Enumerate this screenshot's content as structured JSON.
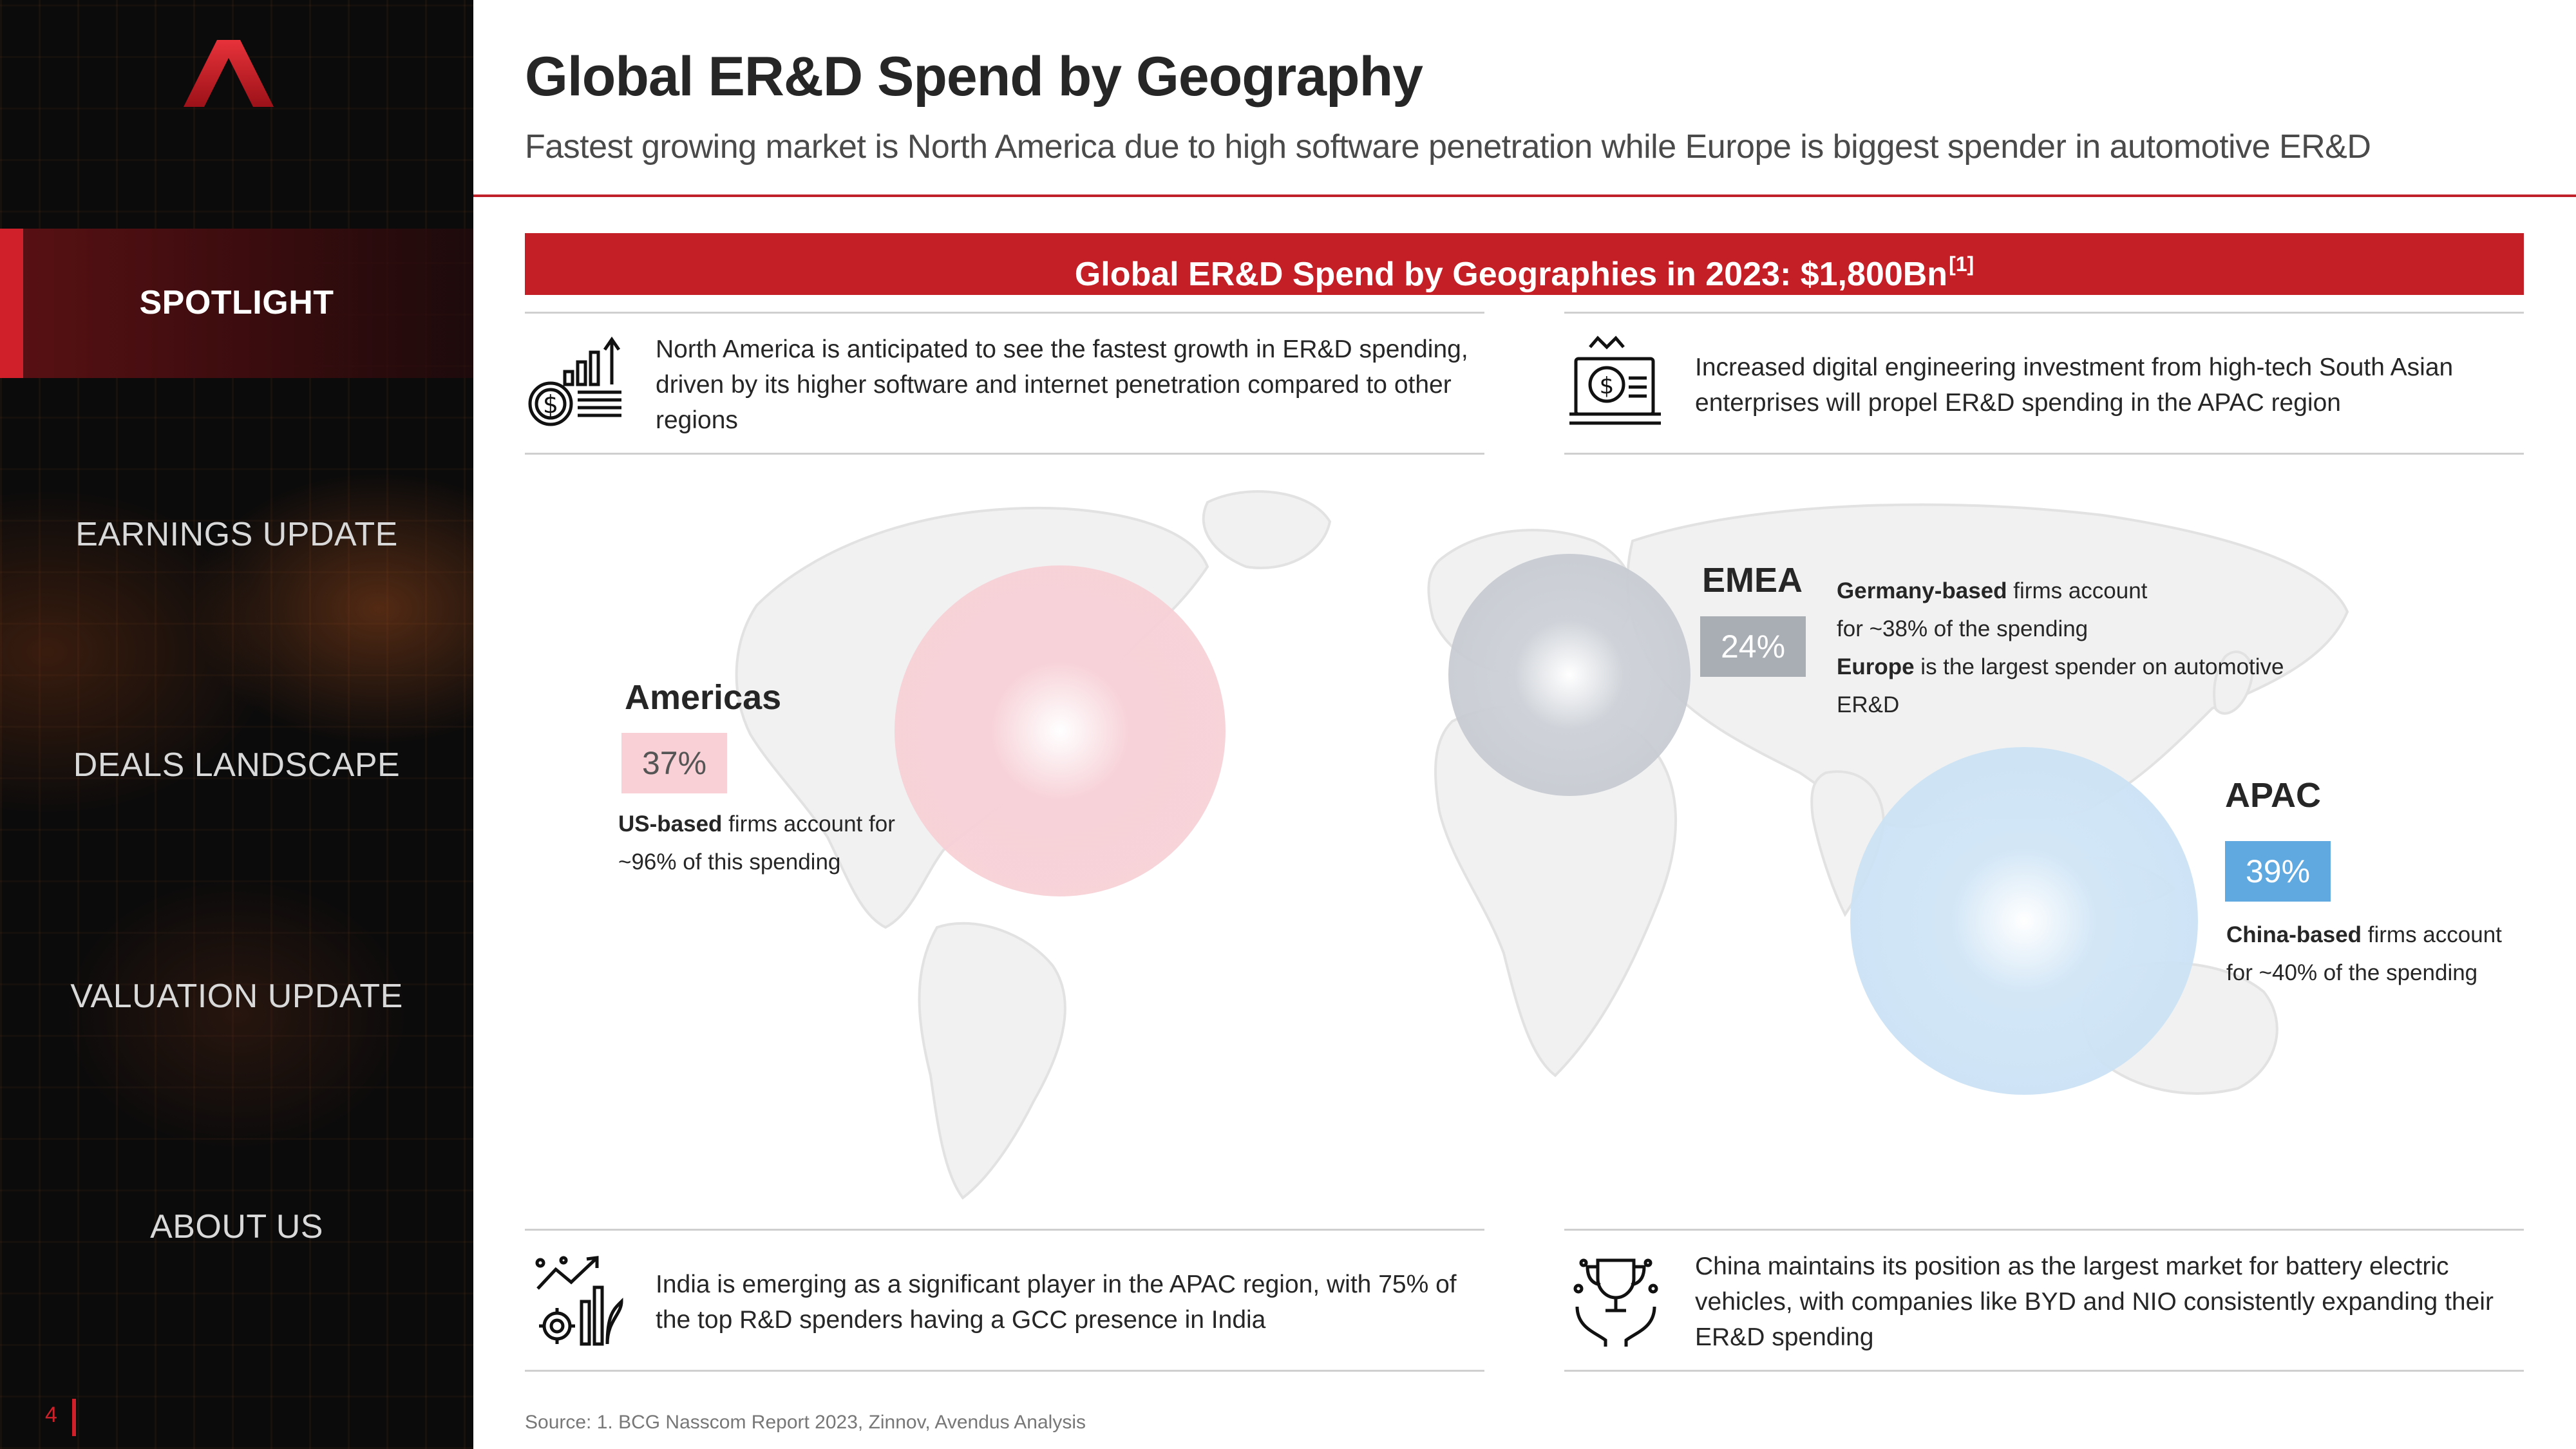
{
  "sidebar": {
    "nav": [
      {
        "label": "SPOTLIGHT",
        "active": true
      },
      {
        "label": "EARNINGS UPDATE",
        "active": false
      },
      {
        "label": "DEALS LANDSCAPE",
        "active": false
      },
      {
        "label": "VALUATION UPDATE",
        "active": false
      },
      {
        "label": "ABOUT US",
        "active": false
      }
    ],
    "page_number": "4",
    "accent_color": "#d0202a"
  },
  "header": {
    "title": "Global ER&D Spend by Geography",
    "subtitle": "Fastest growing market is North America due to high software penetration while Europe is biggest spender in automotive ER&D"
  },
  "banner": {
    "text": "Global ER&D Spend by Geographies in 2023: $1,800Bn",
    "footnote": "[1]"
  },
  "insights": {
    "top_left": {
      "icon": "growth-chart-money-icon",
      "text": "North America is anticipated to see the fastest growth in ER&D spending, driven by its higher software and internet penetration compared to other regions"
    },
    "top_right": {
      "icon": "laptop-money-crown-icon",
      "text": "Increased digital engineering investment from high-tech South Asian enterprises will propel ER&D spending in the APAC region"
    },
    "bottom_left": {
      "icon": "gear-growth-plant-icon",
      "text": "India is emerging as a significant player in the APAC region, with 75% of the top R&D spenders having a GCC presence in India"
    },
    "bottom_right": {
      "icon": "trophy-hands-icon",
      "text": "China maintains its position as the largest market for battery electric vehicles, with companies like BYD and NIO consistently expanding their ER&D spending"
    }
  },
  "regions": {
    "americas": {
      "name": "Americas",
      "share": "37%",
      "color": "#f7d0d6",
      "desc_bold": "US-based",
      "desc_rest": " firms account for ~96% of this spending"
    },
    "emea": {
      "name": "EMEA",
      "share": "24%",
      "color": "#a9adb4",
      "desc_bold1": "Germany-based",
      "desc_rest1": " firms account for ~38% of the spending",
      "desc_bold2": "Europe",
      "desc_rest2": " is the largest spender on automotive ER&D"
    },
    "apac": {
      "name": "APAC",
      "share": "39%",
      "color": "#5fa8e0",
      "desc_bold": "China-based",
      "desc_rest": " firms account for ~40% of the spending"
    }
  },
  "source": "Source: 1. BCG Nasscom Report 2023, Zinnov, Avendus Analysis"
}
